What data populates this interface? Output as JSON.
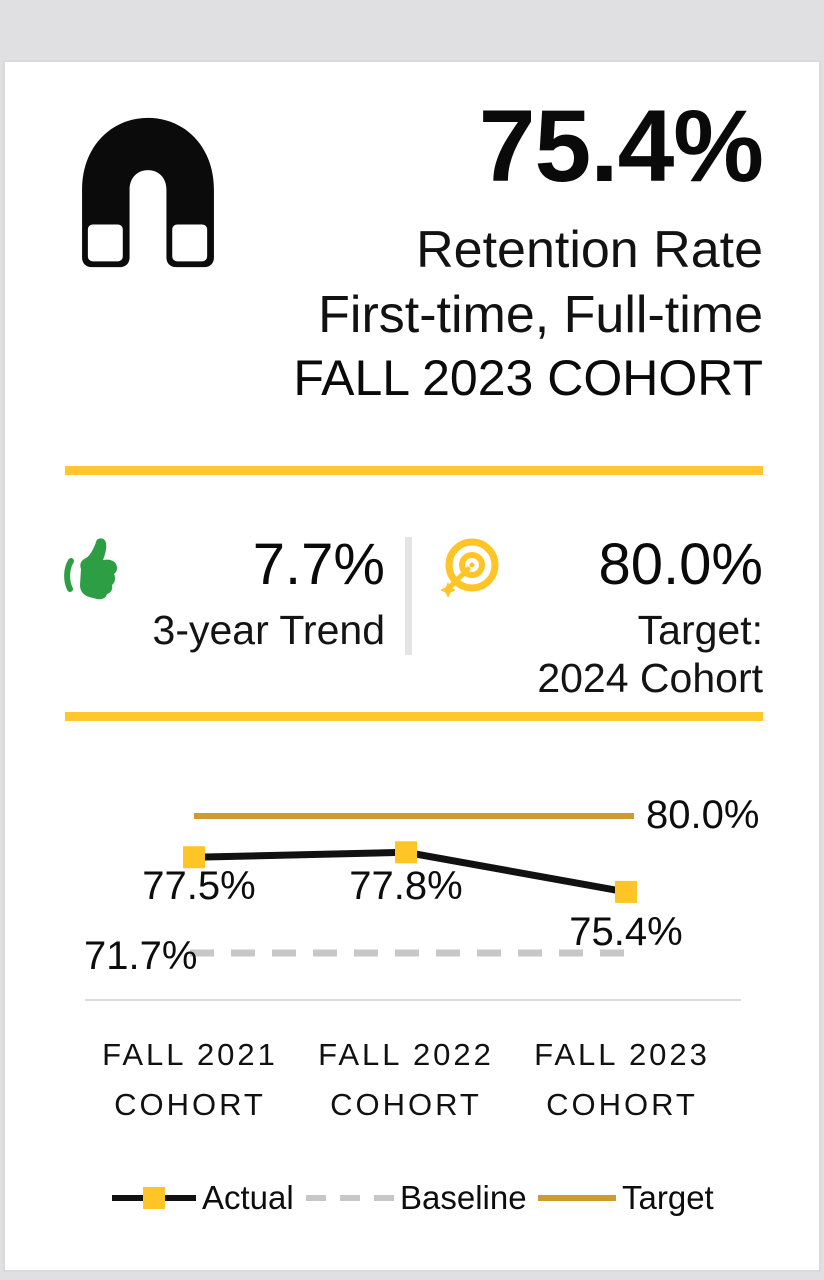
{
  "header": {
    "value": "75.4%",
    "subtitle1": "Retention Rate",
    "subtitle2": "First-time, Full-time",
    "cohort": "FALL 2023 COHORT",
    "icon": "magnet-icon"
  },
  "stats": {
    "trend": {
      "value": "7.7%",
      "label": "3-year Trend",
      "icon": "thumbs-up-icon"
    },
    "target": {
      "value": "80.0%",
      "label1": "Target:",
      "label2": "2024 Cohort",
      "icon": "bullseye-dart-icon"
    }
  },
  "colors": {
    "accent_yellow": "#FFC72C",
    "marker_yellow": "#FFC425",
    "target_gold": "#CD9B2F",
    "trend_green": "#2E9E44",
    "baseline_gray": "#C7C7C7",
    "band_gray": "#E0E0E2",
    "text": "#0E0E0E"
  },
  "chart_data": {
    "type": "line",
    "title": "",
    "xlabel": "",
    "ylabel": "",
    "ylim": [
      70,
      82
    ],
    "grid": false,
    "legend_position": "bottom",
    "categories": [
      "FALL 2021 COHORT",
      "FALL 2022 COHORT",
      "FALL 2023 COHORT"
    ],
    "categories_lines": [
      [
        "FALL 2021",
        "COHORT"
      ],
      [
        "FALL 2022",
        "COHORT"
      ],
      [
        "FALL 2023",
        "COHORT"
      ]
    ],
    "series": [
      {
        "name": "Actual",
        "style": "solid",
        "color": "#111111",
        "marker": "square",
        "marker_color": "#FFC425",
        "values": [
          77.5,
          77.8,
          75.4
        ],
        "point_labels": [
          "77.5%",
          "77.8%",
          "75.4%"
        ]
      },
      {
        "name": "Baseline",
        "style": "dashed",
        "color": "#C7C7C7",
        "values": [
          71.7,
          71.7,
          71.7
        ],
        "label": "71.7%"
      },
      {
        "name": "Target",
        "style": "solid",
        "color": "#CD9B2F",
        "values": [
          80.0,
          80.0,
          80.0
        ],
        "label": "80.0%"
      }
    ],
    "legend": [
      "Actual",
      "Baseline",
      "Target"
    ]
  }
}
